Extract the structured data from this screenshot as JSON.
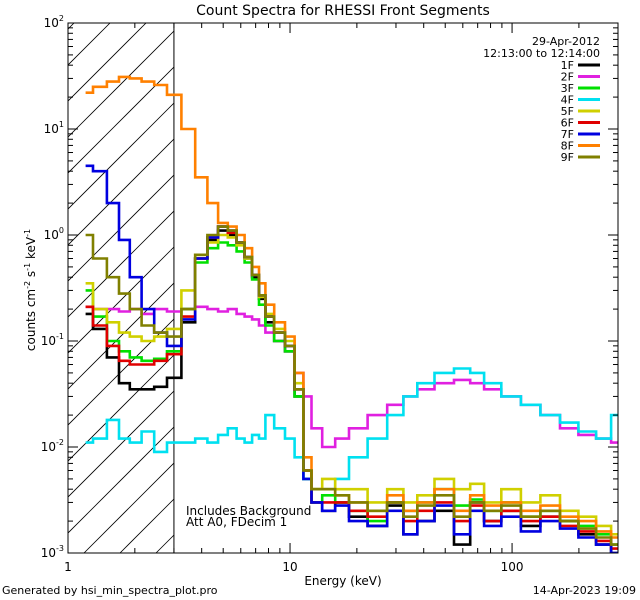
{
  "chart_data": {
    "type": "line",
    "style": "histogram-step",
    "title": "Count Spectra for RHESSI Front Segments",
    "xlabel": "Energy (keV)",
    "ylabel": "counts cm^-2 s^-1 keV^-1",
    "ylabel_parts": {
      "base": "counts cm",
      "e1": "-2",
      "mid": " s",
      "e2": "-1",
      "mid2": " keV",
      "e3": "-1"
    },
    "xscale": "log",
    "yscale": "log",
    "xlim": [
      1,
      300
    ],
    "ylim": [
      0.001,
      100
    ],
    "xticks": [
      {
        "v": 1,
        "label": "1"
      },
      {
        "v": 10,
        "label": "10"
      },
      {
        "v": 100,
        "label": "100"
      }
    ],
    "yticks": [
      {
        "v": 0.001,
        "base": "10",
        "exp": "-3"
      },
      {
        "v": 0.01,
        "base": "10",
        "exp": "-2"
      },
      {
        "v": 0.1,
        "base": "10",
        "exp": "-1"
      },
      {
        "v": 1,
        "base": "10",
        "exp": "0"
      },
      {
        "v": 10,
        "base": "10",
        "exp": "1"
      },
      {
        "v": 100,
        "base": "10",
        "exp": "2"
      }
    ],
    "date": "29-Apr-2012",
    "time_range": "12:13:00 to 12:14:00",
    "hatched_region_max_keV": 3,
    "annotation_lines": [
      "Includes Background",
      "Att A0, FDecim 1"
    ],
    "footer_left": "Generated by hsi_min_spectra_plot.pro",
    "footer_right": "14-Apr-2023 19:09",
    "energy_bins": [
      1.2,
      1.4,
      1.6,
      1.8,
      2.0,
      2.3,
      2.6,
      3.0,
      3.5,
      4.0,
      4.5,
      5.0,
      5.5,
      6.0,
      6.5,
      7.0,
      7.5,
      8.0,
      9.0,
      10.0,
      11.0,
      12.0,
      13.0,
      15.0,
      17.0,
      20.0,
      25.0,
      30.0,
      35.0,
      40.0,
      50.0,
      60.0,
      70.0,
      80.0,
      100.0,
      120.0,
      150.0,
      180.0,
      220.0,
      260.0,
      300.0
    ],
    "series": [
      {
        "name": "1F",
        "color": "#000000",
        "values": [
          0.18,
          0.13,
          0.07,
          0.04,
          0.035,
          0.035,
          0.037,
          0.045,
          0.15,
          0.6,
          0.9,
          1.1,
          1.0,
          0.85,
          0.6,
          0.4,
          0.25,
          0.15,
          0.1,
          0.08,
          0.03,
          0.006,
          0.003,
          0.0025,
          0.003,
          0.0022,
          0.0018,
          0.0028,
          0.0015,
          0.002,
          0.0025,
          0.0012,
          0.003,
          0.002,
          0.0025,
          0.0018,
          0.0022,
          0.002,
          0.0015,
          0.0012,
          0.001
        ]
      },
      {
        "name": "2F",
        "color": "#e020e0",
        "values": [
          0.21,
          0.2,
          0.2,
          0.19,
          0.2,
          0.18,
          0.2,
          0.19,
          0.2,
          0.21,
          0.2,
          0.19,
          0.2,
          0.18,
          0.17,
          0.16,
          0.14,
          0.12,
          0.1,
          0.08,
          0.05,
          0.03,
          0.015,
          0.01,
          0.012,
          0.015,
          0.02,
          0.025,
          0.03,
          0.035,
          0.04,
          0.043,
          0.04,
          0.035,
          0.03,
          0.025,
          0.02,
          0.015,
          0.013,
          0.012,
          0.011
        ]
      },
      {
        "name": "3F",
        "color": "#00e000",
        "values": [
          0.3,
          0.17,
          0.1,
          0.08,
          0.07,
          0.065,
          0.068,
          0.08,
          0.2,
          0.55,
          0.75,
          0.85,
          0.8,
          0.7,
          0.55,
          0.38,
          0.22,
          0.14,
          0.1,
          0.08,
          0.03,
          0.005,
          0.003,
          0.0035,
          0.003,
          0.0025,
          0.002,
          0.003,
          0.0025,
          0.003,
          0.004,
          0.0028,
          0.0032,
          0.0025,
          0.003,
          0.0022,
          0.0025,
          0.002,
          0.0018,
          0.0015,
          0.0012
        ]
      },
      {
        "name": "4F",
        "color": "#00e0f0",
        "values": [
          0.011,
          0.012,
          0.018,
          0.012,
          0.011,
          0.014,
          0.009,
          0.011,
          0.011,
          0.012,
          0.011,
          0.013,
          0.015,
          0.012,
          0.011,
          0.013,
          0.012,
          0.02,
          0.015,
          0.012,
          0.008,
          0.005,
          0.004,
          0.004,
          0.005,
          0.008,
          0.012,
          0.02,
          0.03,
          0.04,
          0.05,
          0.055,
          0.05,
          0.04,
          0.03,
          0.025,
          0.02,
          0.017,
          0.014,
          0.012,
          0.02
        ]
      },
      {
        "name": "5F",
        "color": "#d0d000",
        "values": [
          0.35,
          0.2,
          0.15,
          0.12,
          0.11,
          0.1,
          0.11,
          0.13,
          0.3,
          0.65,
          0.85,
          1.0,
          0.95,
          0.8,
          0.6,
          0.42,
          0.26,
          0.18,
          0.13,
          0.1,
          0.04,
          0.006,
          0.004,
          0.005,
          0.004,
          0.004,
          0.003,
          0.004,
          0.003,
          0.0035,
          0.005,
          0.004,
          0.0045,
          0.003,
          0.004,
          0.003,
          0.0035,
          0.0025,
          0.0022,
          0.0018,
          0.0015
        ]
      },
      {
        "name": "6F",
        "color": "#e00000",
        "values": [
          0.21,
          0.14,
          0.09,
          0.065,
          0.06,
          0.06,
          0.065,
          0.075,
          0.17,
          0.6,
          0.95,
          1.2,
          1.05,
          0.85,
          0.62,
          0.42,
          0.27,
          0.17,
          0.12,
          0.09,
          0.035,
          0.006,
          0.003,
          0.003,
          0.003,
          0.0025,
          0.0022,
          0.003,
          0.002,
          0.0025,
          0.003,
          0.002,
          0.0028,
          0.002,
          0.0025,
          0.002,
          0.0022,
          0.0018,
          0.0016,
          0.0013,
          0.0011
        ]
      },
      {
        "name": "7F",
        "color": "#0000e0",
        "values": [
          4.5,
          4.0,
          2.0,
          0.9,
          0.4,
          0.2,
          0.12,
          0.09,
          0.16,
          0.6,
          0.95,
          1.2,
          1.1,
          0.85,
          0.62,
          0.42,
          0.27,
          0.17,
          0.12,
          0.09,
          0.035,
          0.005,
          0.003,
          0.0025,
          0.0028,
          0.002,
          0.0018,
          0.0025,
          0.0015,
          0.002,
          0.0028,
          0.0015,
          0.0025,
          0.0018,
          0.0022,
          0.0016,
          0.002,
          0.0017,
          0.0014,
          0.0012,
          0.001
        ]
      },
      {
        "name": "8F",
        "color": "#ff8000",
        "values": [
          22,
          25,
          28,
          31,
          30,
          28,
          26,
          21,
          10,
          3.5,
          2.0,
          1.3,
          1.2,
          1.0,
          0.75,
          0.5,
          0.35,
          0.22,
          0.15,
          0.11,
          0.05,
          0.008,
          0.004,
          0.004,
          0.0035,
          0.003,
          0.0025,
          0.0035,
          0.0025,
          0.003,
          0.004,
          0.0025,
          0.0035,
          0.0028,
          0.003,
          0.0025,
          0.0028,
          0.0022,
          0.002,
          0.0016,
          0.0014
        ]
      },
      {
        "name": "9F",
        "color": "#808000",
        "values": [
          1.0,
          0.6,
          0.4,
          0.28,
          0.2,
          0.14,
          0.12,
          0.11,
          0.2,
          0.65,
          1.0,
          1.2,
          1.1,
          0.85,
          0.62,
          0.42,
          0.27,
          0.17,
          0.12,
          0.09,
          0.035,
          0.006,
          0.004,
          0.004,
          0.0035,
          0.003,
          0.0025,
          0.003,
          0.0022,
          0.0028,
          0.0035,
          0.0022,
          0.003,
          0.0025,
          0.0028,
          0.0022,
          0.0025,
          0.002,
          0.0017,
          0.0014,
          0.0012
        ]
      }
    ]
  }
}
